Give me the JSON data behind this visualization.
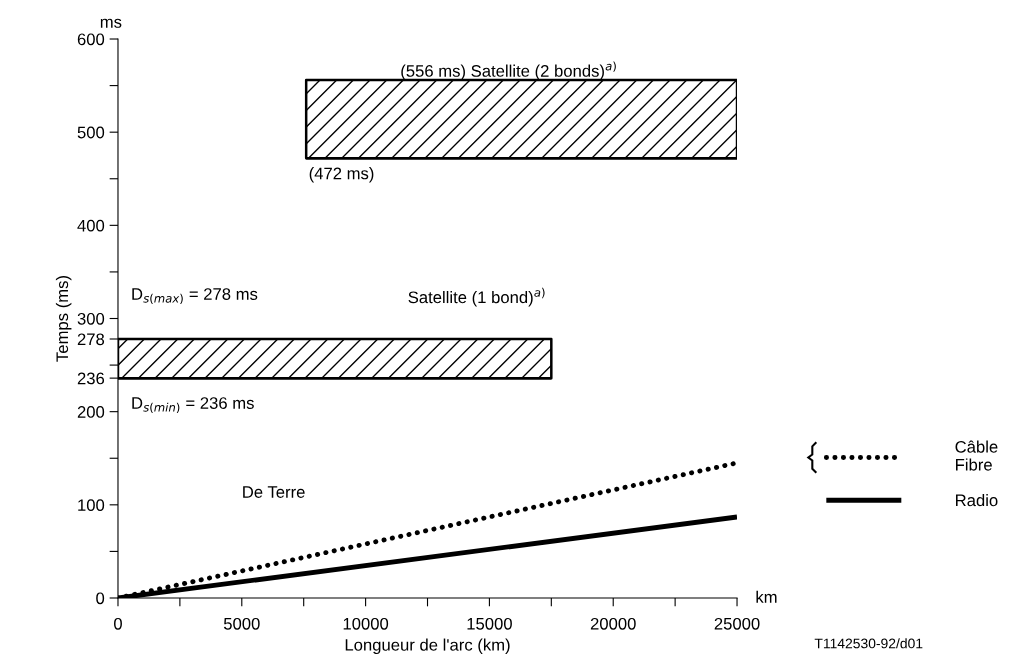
{
  "chart_data": {
    "type": "line",
    "xlabel": "Longueur de l'arc (km)",
    "ylabel": "Temps (ms)",
    "xlim": [
      0,
      25000
    ],
    "ylim": [
      0,
      600
    ],
    "xticks": [
      0,
      {
        "value": 2500,
        "label": null
      },
      5000,
      {
        "value": 7500,
        "label": null
      },
      10000,
      {
        "value": 12500,
        "label": null
      },
      15000,
      {
        "value": 17500,
        "label": null
      },
      20000,
      {
        "value": 22500,
        "label": null
      },
      25000
    ],
    "yticks": [
      0,
      {
        "value": 50,
        "label": null
      },
      100,
      {
        "value": 150,
        "label": null
      },
      200,
      236,
      {
        "value": 250,
        "label": null
      },
      278,
      300,
      {
        "value": 350,
        "label": null
      },
      400,
      {
        "value": 450,
        "label": null
      },
      500,
      {
        "value": 550,
        "label": null
      },
      600
    ],
    "legend": "right",
    "series": [
      {
        "name": "Câble\nFibre",
        "color": "#000000",
        "line_style": "dotted",
        "x": [
          0,
          25000
        ],
        "values": [
          0,
          145
        ]
      },
      {
        "name": "Radio",
        "color": "#000000",
        "line_style": "solid",
        "x": [
          0,
          25000
        ],
        "values": [
          0,
          87
        ]
      },
      {
        "color": "#000000",
        "line_style": "solid",
        "x": [
          7600,
          25000
        ],
        "values": [
          472,
          472
        ],
        "lower": [
          472,
          472
        ],
        "upper": [
          556,
          556
        ]
      },
      {
        "color": "#000000",
        "line_style": "solid",
        "x": [
          0,
          17500
        ],
        "values": [
          236,
          236
        ],
        "lower": [
          236,
          236
        ],
        "upper": [
          278,
          278
        ]
      }
    ],
    "annotations": [
      "(556 ms) Satellite (2 bonds)$^{a)}$",
      "(472 ms)",
      "D$_{s(max)}$ = 278 ms",
      "Satellite (1 bond)$^{a)}$",
      "D$_{s(min)}$ = 236 ms",
      "De Terre",
      "ms",
      "km",
      "T1142530-92/d01"
    ]
  }
}
